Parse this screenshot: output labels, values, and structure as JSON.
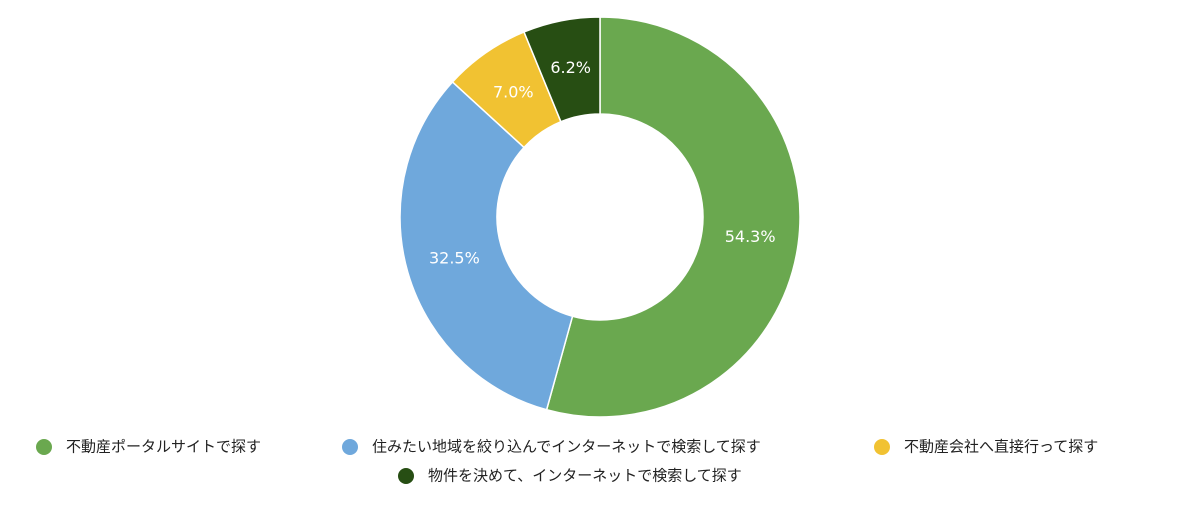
{
  "chart_data": {
    "type": "donut",
    "categories": [
      "不動産ポータルサイトで探す",
      "住みたい地域を絞り込んでインターネットで検索して探す",
      "不動産会社へ直接行って探す",
      "物件を決めて、インターネットで検索して探す"
    ],
    "values": [
      54.3,
      32.5,
      7.0,
      6.2
    ],
    "value_labels": [
      "54.3%",
      "32.5%",
      "7.0%",
      "6.2%"
    ],
    "colors": [
      "#6aa84f",
      "#6fa8dc",
      "#f1c232",
      "#274e13"
    ],
    "legend": "bottom"
  }
}
